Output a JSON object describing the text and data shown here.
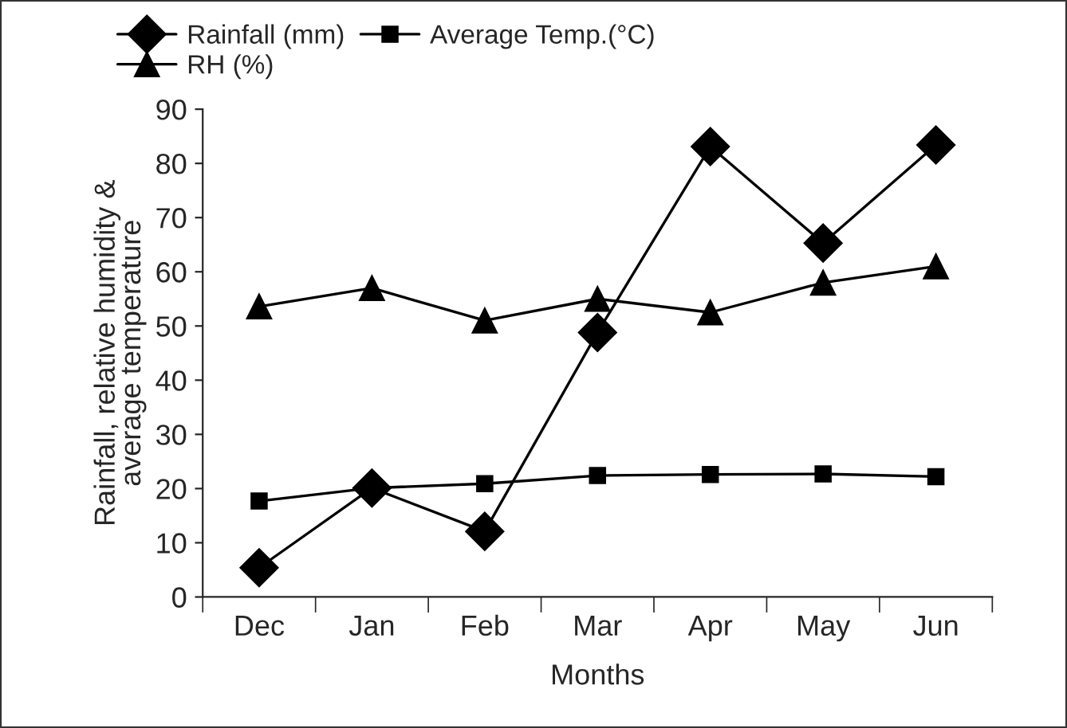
{
  "chart_data": {
    "type": "line",
    "xlabel": "Months",
    "ylabel": "Rainfall, relative humidity &\naverage temperature",
    "categories": [
      "Dec",
      "Jan",
      "Feb",
      "Mar",
      "Apr",
      "May",
      "Jun"
    ],
    "series": [
      {
        "name": "Rainfall (mm)",
        "color": "#000000",
        "marker": "diamond",
        "values": [
          5.4,
          20.1,
          12.1,
          48.8,
          83.1,
          65.3,
          83.4
        ]
      },
      {
        "name": "Average Temp.(°C)",
        "color": "#000000",
        "marker": "square",
        "values": [
          17.7,
          20.1,
          20.9,
          22.4,
          22.6,
          22.7,
          22.2
        ]
      },
      {
        "name": "RH (%)",
        "color": "#000000",
        "marker": "triangle",
        "values": [
          53.6,
          57.0,
          51.0,
          55.0,
          52.5,
          58.0,
          61.0
        ]
      }
    ],
    "ylim": [
      0,
      90
    ],
    "yticks": [
      0,
      10,
      20,
      30,
      40,
      50,
      60,
      70,
      80,
      90
    ],
    "grid": false,
    "legend": "top left",
    "line_style": "solid"
  }
}
